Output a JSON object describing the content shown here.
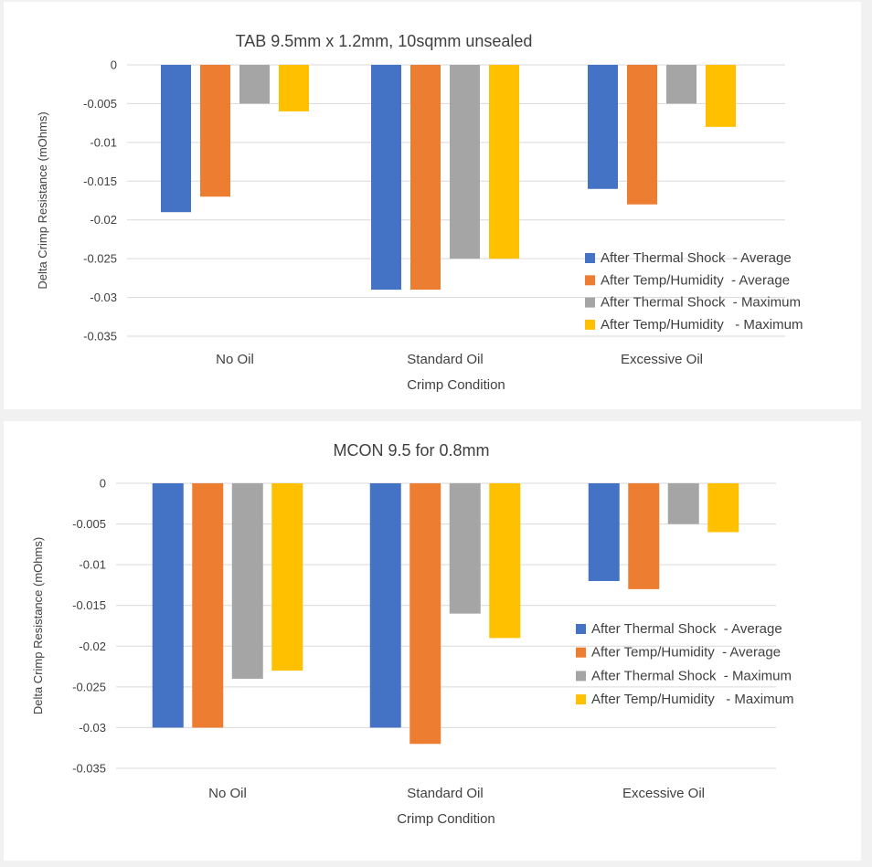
{
  "chart_data": [
    {
      "type": "bar",
      "title": "TAB 9.5mm x 1.2mm, 10sqmm unsealed",
      "xlabel": "Crimp Condition",
      "ylabel": "Delta Crimp Resistance  (mOhms)",
      "categories": [
        "No Oil",
        "Standard Oil",
        "Excessive Oil"
      ],
      "ylim": [
        -0.035,
        0
      ],
      "yticks": [
        0,
        -0.005,
        -0.01,
        -0.015,
        -0.02,
        -0.025,
        -0.03,
        -0.035
      ],
      "ytick_labels": [
        "0",
        "-0.005",
        "-0.01",
        "-0.015",
        "-0.02",
        "-0.025",
        "-0.03",
        "-0.035"
      ],
      "grid": true,
      "legend_position": "right",
      "series": [
        {
          "name": "After Thermal Shock  - Average",
          "color": "#4472c4",
          "values": [
            -0.019,
            -0.029,
            -0.016
          ]
        },
        {
          "name": "After Temp/Humidity  - Average",
          "color": "#ed7d31",
          "values": [
            -0.017,
            -0.029,
            -0.018
          ]
        },
        {
          "name": "After Thermal Shock  - Maximum",
          "color": "#a5a5a5",
          "values": [
            -0.005,
            -0.025,
            -0.005
          ]
        },
        {
          "name": "After Temp/Humidity   - Maximum",
          "color": "#ffc000",
          "values": [
            -0.006,
            -0.025,
            -0.008
          ]
        }
      ]
    },
    {
      "type": "bar",
      "title": "MCON 9.5 for 0.8mm",
      "xlabel": "Crimp Condition",
      "ylabel": "Delta Crimp Resistance (mOhms)",
      "categories": [
        "No Oil",
        "Standard Oil",
        "Excessive Oil"
      ],
      "ylim": [
        -0.035,
        0
      ],
      "yticks": [
        0,
        -0.005,
        -0.01,
        -0.015,
        -0.02,
        -0.025,
        -0.03,
        -0.035
      ],
      "ytick_labels": [
        "0",
        "-0.005",
        "-0.01",
        "-0.015",
        "-0.02",
        "-0.025",
        "-0.03",
        "-0.035"
      ],
      "grid": true,
      "legend_position": "right",
      "series": [
        {
          "name": "After Thermal Shock  - Average",
          "color": "#4472c4",
          "values": [
            -0.03,
            -0.03,
            -0.012
          ]
        },
        {
          "name": "After Temp/Humidity  - Average",
          "color": "#ed7d31",
          "values": [
            -0.03,
            -0.032,
            -0.013
          ]
        },
        {
          "name": "After Thermal Shock  - Maximum",
          "color": "#a5a5a5",
          "values": [
            -0.024,
            -0.016,
            -0.005
          ]
        },
        {
          "name": "After Temp/Humidity   - Maximum",
          "color": "#ffc000",
          "values": [
            -0.023,
            -0.019,
            -0.006
          ]
        }
      ]
    }
  ]
}
